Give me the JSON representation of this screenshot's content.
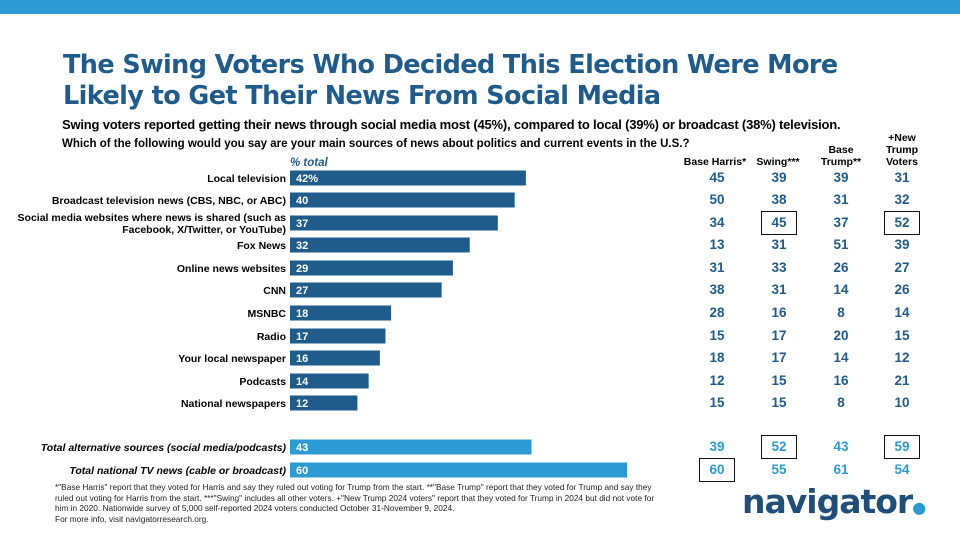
{
  "title": "The Swing Voters Who Decided This Election Were More Likely to Get Their News From Social Media",
  "subtitle": "Swing voters reported getting their news through social media most (45%), compared to local (39%) or broadcast (38%) television.",
  "question": "Which of the following would you say are your main sources of news about politics and current events in the U.S.?",
  "pct_total_label": "% total",
  "columns": [
    {
      "key": "harris",
      "label": "Base Harris*"
    },
    {
      "key": "swing",
      "label": "Swing***"
    },
    {
      "key": "trump",
      "label": "Base Trump**"
    },
    {
      "key": "new_trump",
      "label": "+New Trump Voters"
    }
  ],
  "chart_data": {
    "type": "bar",
    "orientation": "horizontal",
    "title": "The Swing Voters Who Decided This Election Were More Likely to Get Their News From Social Media",
    "value_label": "% total",
    "xlim": [
      0,
      60
    ],
    "categories": [
      "Local television",
      "Broadcast television news (CBS, NBC, or ABC)",
      "Social media websites where news is shared (such as Facebook, X/Twitter, or YouTube)",
      "Fox News",
      "Online news websites",
      "CNN",
      "MSNBC",
      "Radio",
      "Your local newspaper",
      "Podcasts",
      "National newspapers",
      "Total alternative sources (social media/podcasts)",
      "Total national TV news (cable or broadcast)"
    ],
    "values": [
      42,
      40,
      37,
      32,
      29,
      27,
      18,
      17,
      16,
      14,
      12,
      43,
      60
    ],
    "value_labels": [
      "42%",
      "40",
      "37",
      "32",
      "29",
      "27",
      "18",
      "17",
      "16",
      "14",
      "12",
      "43",
      "60"
    ],
    "total_rows": [
      11,
      12
    ],
    "bar_color": "#1f5c8c",
    "total_bar_color": "#2d9bd3",
    "series": [
      {
        "name": "Base Harris*",
        "values": [
          45,
          50,
          34,
          13,
          31,
          38,
          28,
          15,
          18,
          12,
          15,
          39,
          60
        ]
      },
      {
        "name": "Swing***",
        "values": [
          39,
          38,
          45,
          31,
          33,
          31,
          16,
          17,
          17,
          15,
          15,
          52,
          55
        ]
      },
      {
        "name": "Base Trump**",
        "values": [
          39,
          31,
          37,
          51,
          26,
          14,
          8,
          20,
          14,
          16,
          8,
          43,
          61
        ]
      },
      {
        "name": "+New Trump Voters",
        "values": [
          31,
          32,
          52,
          39,
          27,
          26,
          14,
          15,
          12,
          21,
          10,
          59,
          54
        ]
      }
    ],
    "highlighted": [
      {
        "row": 2,
        "col": 1
      },
      {
        "row": 2,
        "col": 3
      },
      {
        "row": 11,
        "col": 1
      },
      {
        "row": 11,
        "col": 3
      },
      {
        "row": 12,
        "col": 0
      }
    ]
  },
  "footnote": {
    "line1": "*\"Base Harris\" report that they voted for Harris and say they ruled out voting for Trump from the start. **\"Base Trump\" report that they voted for Trump and say they ruled out voting for Harris from the start. ***\"Swing\" includes all other voters. +\"New Trump 2024 voters\" report that they voted for Trump in 2024 but did not vote for him in 2020. Nationwide survey of 5,000 self-reported 2024 voters conducted October 31-November 9, 2024.",
    "line2": "For more info, visit navigatorresearch.org."
  },
  "logo": {
    "text": "navigator",
    "dot": "●"
  },
  "colors": {
    "top_bar": "#2d9bd3",
    "title": "#1f5c8c",
    "total_cells": "#2d9bd3",
    "cells": "#1f5c8c"
  }
}
